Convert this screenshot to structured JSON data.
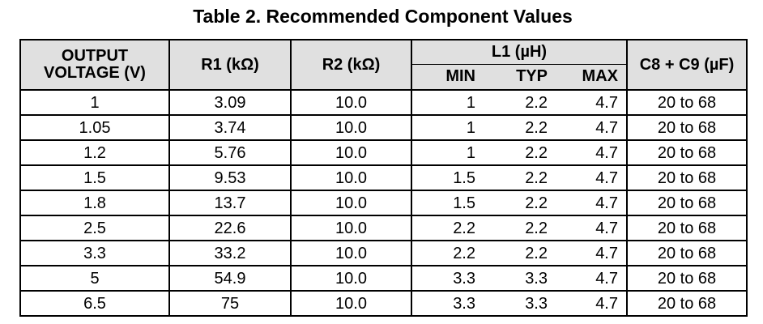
{
  "title": "Table 2. Recommended Component Values",
  "colors": {
    "header_bg": "#e0e0e0",
    "border": "#000000",
    "text": "#000000",
    "page_bg": "#ffffff"
  },
  "table": {
    "headers": {
      "output_voltage": "OUTPUT VOLTAGE (V)",
      "r1": "R1 (kΩ)",
      "r2": "R2 (kΩ)",
      "l1_group": "L1 (µH)",
      "l1_min": "MIN",
      "l1_typ": "TYP",
      "l1_max": "MAX",
      "c8_c9": "C8 + C9 (µF)"
    },
    "rows": [
      [
        "1",
        "3.09",
        "10.0",
        "1",
        "2.2",
        "4.7",
        "20 to 68"
      ],
      [
        "1.05",
        "3.74",
        "10.0",
        "1",
        "2.2",
        "4.7",
        "20 to 68"
      ],
      [
        "1.2",
        "5.76",
        "10.0",
        "1",
        "2.2",
        "4.7",
        "20 to 68"
      ],
      [
        "1.5",
        "9.53",
        "10.0",
        "1.5",
        "2.2",
        "4.7",
        "20 to 68"
      ],
      [
        "1.8",
        "13.7",
        "10.0",
        "1.5",
        "2.2",
        "4.7",
        "20 to 68"
      ],
      [
        "2.5",
        "22.6",
        "10.0",
        "2.2",
        "2.2",
        "4.7",
        "20 to 68"
      ],
      [
        "3.3",
        "33.2",
        "10.0",
        "2.2",
        "2.2",
        "4.7",
        "20 to 68"
      ],
      [
        "5",
        "54.9",
        "10.0",
        "3.3",
        "3.3",
        "4.7",
        "20 to 68"
      ],
      [
        "6.5",
        "75",
        "10.0",
        "3.3",
        "3.3",
        "4.7",
        "20 to 68"
      ]
    ]
  }
}
